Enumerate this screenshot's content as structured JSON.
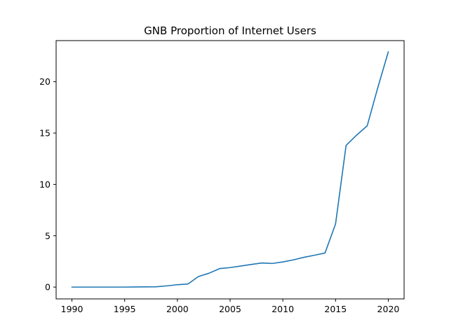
{
  "chart_data": {
    "type": "line",
    "title": "GNB Proportion of Internet Users",
    "xlabel": "",
    "ylabel": "",
    "xlim": [
      1988.5,
      2021.5
    ],
    "ylim": [
      -1.15,
      24.0
    ],
    "x_ticks": [
      1990,
      1995,
      2000,
      2005,
      2010,
      2015,
      2020
    ],
    "y_ticks": [
      0,
      5,
      10,
      15,
      20
    ],
    "grid": false,
    "series": [
      {
        "color": "#1f77b4",
        "x": [
          1990,
          1991,
          1992,
          1993,
          1994,
          1995,
          1996,
          1997,
          1998,
          1999,
          2000,
          2001,
          2002,
          2003,
          2004,
          2005,
          2006,
          2007,
          2008,
          2009,
          2010,
          2011,
          2012,
          2013,
          2014,
          2015,
          2016,
          2017,
          2018,
          2019,
          2020
        ],
        "y": [
          0,
          0,
          0,
          0,
          0,
          0,
          0.01,
          0.02,
          0.03,
          0.12,
          0.23,
          0.3,
          1.03,
          1.35,
          1.8,
          1.9,
          2.05,
          2.2,
          2.35,
          2.3,
          2.45,
          2.65,
          2.9,
          3.1,
          3.32,
          6.15,
          13.8,
          14.8,
          15.7,
          19.4,
          22.9
        ]
      }
    ]
  }
}
